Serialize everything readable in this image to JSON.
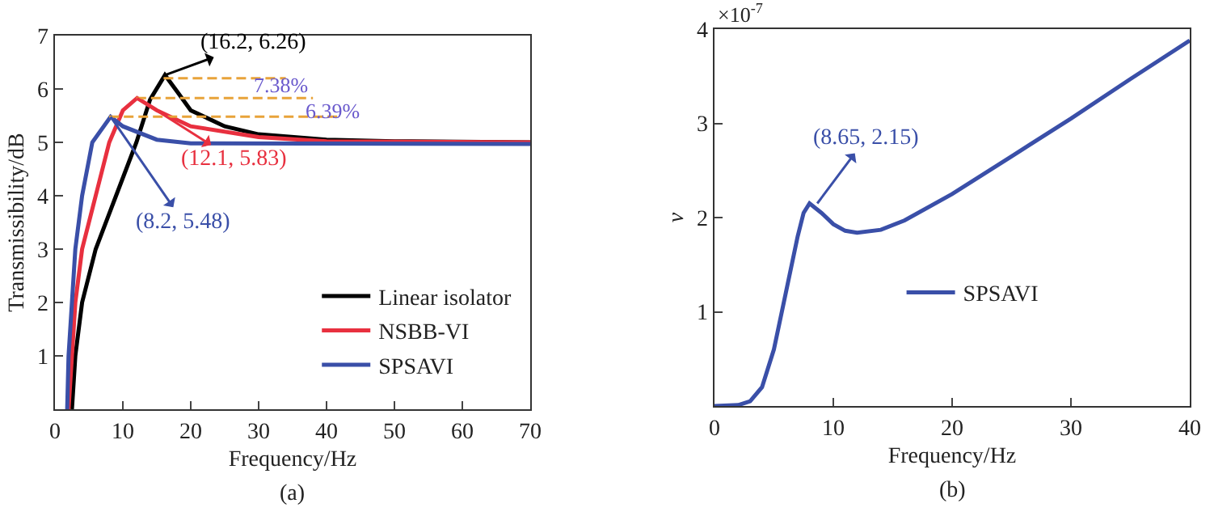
{
  "chart_data": [
    {
      "type": "line",
      "xlabel": "Frequency/Hz",
      "ylabel": "Transmissibility/dB",
      "xlim": [
        0,
        70
      ],
      "ylim": [
        0,
        7
      ],
      "xticks": [
        0,
        10,
        20,
        30,
        40,
        50,
        60,
        70
      ],
      "yticks": [
        1,
        2,
        3,
        4,
        5,
        6,
        7
      ],
      "grid": false,
      "legend": "bottom right",
      "line_style": "solid",
      "marker": "none",
      "series": [
        {
          "name": "Linear isolator",
          "color": "#000000",
          "x": [
            2.5,
            3,
            4,
            6,
            9,
            12,
            14,
            16.2,
            18,
            20,
            25,
            30,
            40,
            50,
            70
          ],
          "values": [
            0,
            1,
            2,
            3,
            4,
            5,
            5.8,
            6.26,
            5.95,
            5.6,
            5.3,
            5.15,
            5.05,
            5.02,
            5.0
          ]
        },
        {
          "name": "NSBB-VI",
          "color": "#e8303f",
          "x": [
            2,
            2.5,
            3,
            4,
            6,
            8,
            10,
            12.1,
            15,
            20,
            30,
            40,
            70
          ],
          "values": [
            0,
            1,
            2,
            3,
            4,
            5,
            5.6,
            5.83,
            5.6,
            5.3,
            5.1,
            5.02,
            5.0
          ]
        },
        {
          "name": "SPSAVI",
          "color": "#3a4fa8",
          "x": [
            1.8,
            2,
            2.5,
            3,
            4,
            5.5,
            8.2,
            10,
            15,
            20,
            70
          ],
          "values": [
            0,
            1,
            2,
            3,
            4,
            5,
            5.48,
            5.3,
            5.05,
            4.98,
            4.97
          ]
        },
        {
          "color": "#e8a33a",
          "x": [
            16,
            34
          ],
          "values": [
            6.2,
            6.2
          ],
          "line_style": "dashed"
        },
        {
          "color": "#e8a33a",
          "x": [
            12,
            38
          ],
          "values": [
            5.83,
            5.83
          ],
          "line_style": "dashed"
        },
        {
          "color": "#e8a33a",
          "x": [
            8,
            42
          ],
          "values": [
            5.48,
            5.48
          ],
          "line_style": "dashed"
        }
      ],
      "annotations": [
        {
          "text": "(16.2, 6.26)",
          "x": 16.2,
          "y": 6.26
        },
        {
          "text": "(12.1, 5.83)",
          "x": 12.1,
          "y": 5.83
        },
        {
          "text": "(8.2, 5.48)",
          "x": 8.2,
          "y": 5.48
        },
        "7.38%",
        "6.39%",
        "(a)"
      ]
    },
    {
      "type": "line",
      "xlabel": "Frequency/Hz",
      "ylabel": "v",
      "xlim": [
        0,
        40
      ],
      "ylim": [
        0,
        4
      ],
      "xticks": [
        0,
        10,
        20,
        30,
        40
      ],
      "yticks": [
        1,
        2,
        3,
        4
      ],
      "grid": false,
      "legend": "right",
      "line_style": "solid",
      "marker": "none",
      "series": [
        {
          "name": "SPSAVI",
          "color": "#3a4fa8",
          "x": [
            0,
            2,
            3,
            4,
            5,
            6,
            7,
            7.5,
            8,
            9,
            10,
            11,
            12,
            14,
            16,
            20,
            25,
            30,
            35,
            40
          ],
          "values": [
            0,
            0.01,
            0.05,
            0.2,
            0.6,
            1.2,
            1.8,
            2.05,
            2.15,
            2.05,
            1.93,
            1.86,
            1.84,
            1.87,
            1.97,
            2.25,
            2.65,
            3.05,
            3.47,
            3.88
          ]
        }
      ],
      "annotations": [
        {
          "text": "(8.65, 2.15)",
          "x": 8.65,
          "y": 2.15
        },
        "×10$^{-7}$",
        "(b)"
      ]
    }
  ]
}
